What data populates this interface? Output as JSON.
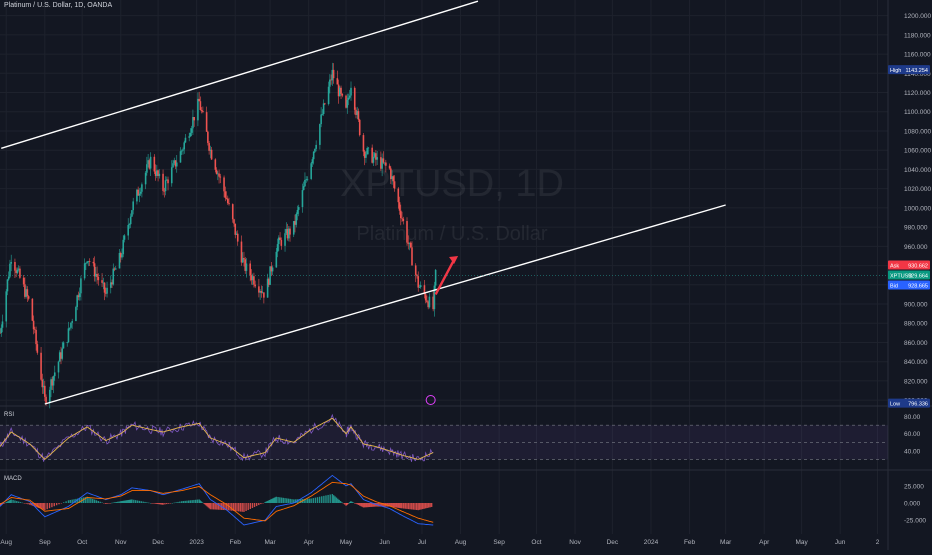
{
  "header": {
    "symbol_title": "Platinum / U.S. Dollar, 1D, OANDA"
  },
  "watermark": {
    "ticker": "XPTUSD, 1D",
    "name": "Platinum / U.S. Dollar"
  },
  "colors": {
    "background": "#131722",
    "grid": "#1e222d",
    "up_candle": "#26a69a",
    "down_candle": "#ef5350",
    "trendline": "#ffffff",
    "arrow": "#f23645",
    "rsi_line": "#7e57c2",
    "rsi_ma": "#e6b84d",
    "macd_line": "#2962ff",
    "signal_line": "#ff6d00"
  },
  "price_axis": {
    "ticks": [
      "1200.000",
      "1180.000",
      "1160.000",
      "1140.000",
      "1120.000",
      "1100.000",
      "1080.000",
      "1060.000",
      "1040.000",
      "1020.000",
      "1000.000",
      "980.000",
      "960.000",
      "940.000",
      "920.000",
      "900.000",
      "880.000",
      "860.000",
      "840.000",
      "820.000",
      "800.000"
    ],
    "high": {
      "label": "High",
      "value": "1143.254"
    },
    "low": {
      "label": "Low",
      "value": "796.336"
    },
    "ask": {
      "label": "Ask",
      "value": "930.662"
    },
    "last": {
      "label": "XPTUSD",
      "value": "929.664"
    },
    "bid": {
      "label": "Bid",
      "value": "928.665"
    }
  },
  "time_axis": {
    "labels": [
      "Aug",
      "Sep",
      "Oct",
      "Nov",
      "Dec",
      "2023",
      "Feb",
      "Mar",
      "Apr",
      "May",
      "Jun",
      "Jul",
      "Aug",
      "Sep",
      "Oct",
      "Nov",
      "Dec",
      "2024",
      "Feb",
      "Mar",
      "Apr",
      "May",
      "Jun",
      "2"
    ]
  },
  "rsi": {
    "label": "RSI",
    "ticks": [
      "80.00",
      "60.00",
      "40.00"
    ]
  },
  "macd": {
    "label": "MACD",
    "ticks": [
      "25.000",
      "0.000",
      "-25.000"
    ]
  },
  "chart_data": {
    "type": "candlestick",
    "title": "Platinum / U.S. Dollar, 1D, OANDA",
    "symbol": "XPTUSD",
    "ylim": [
      796,
      1210
    ],
    "trend_channel": {
      "upper": {
        "start": {
          "date": "2022-07-28",
          "price": 1062
        },
        "end": {
          "date": "2023-08-15",
          "price": 1215
        }
      },
      "lower": {
        "start": {
          "date": "2022-09-01",
          "price": 796
        },
        "end": {
          "date": "2024-03-01",
          "price": 1003
        }
      }
    },
    "price_path": {
      "dates": [
        "2022-07-27",
        "2022-08-05",
        "2022-08-20",
        "2022-09-01",
        "2022-09-20",
        "2022-10-05",
        "2022-10-20",
        "2022-11-01",
        "2022-11-10",
        "2022-11-25",
        "2022-12-05",
        "2022-12-20",
        "2023-01-03",
        "2023-01-12",
        "2023-01-25",
        "2023-02-08",
        "2023-02-25",
        "2023-03-06",
        "2023-03-20",
        "2023-04-03",
        "2023-04-20",
        "2023-05-01",
        "2023-05-05",
        "2023-05-15",
        "2023-05-25",
        "2023-06-05",
        "2023-06-15",
        "2023-06-28",
        "2023-07-10",
        "2023-07-12"
      ],
      "close": [
        870,
        950,
        900,
        800,
        870,
        950,
        910,
        950,
        1000,
        1050,
        1020,
        1060,
        1110,
        1060,
        1010,
        940,
        910,
        960,
        980,
        1050,
        1140,
        1100,
        1130,
        1060,
        1050,
        1040,
        990,
        920,
        895,
        929.664
      ]
    },
    "rsi_path": [
      45,
      62,
      48,
      30,
      55,
      68,
      52,
      60,
      70,
      65,
      62,
      68,
      72,
      55,
      48,
      32,
      38,
      55,
      50,
      65,
      78,
      60,
      68,
      48,
      45,
      40,
      35,
      30,
      38
    ],
    "macd_line_path": [
      -5,
      12,
      2,
      -20,
      -5,
      15,
      5,
      12,
      22,
      18,
      12,
      20,
      28,
      5,
      -10,
      -32,
      -25,
      -5,
      0,
      15,
      40,
      25,
      28,
      5,
      -2,
      -8,
      -18,
      -30,
      -32
    ],
    "signal_path": [
      -2,
      8,
      4,
      -12,
      -8,
      8,
      6,
      10,
      18,
      18,
      14,
      18,
      24,
      12,
      -2,
      -22,
      -26,
      -12,
      -4,
      10,
      30,
      28,
      26,
      10,
      2,
      -4,
      -12,
      -22,
      -28
    ],
    "arrow": {
      "from": {
        "date": "2023-07-12",
        "price": 910
      },
      "to": {
        "date": "2023-07-30",
        "price": 950
      }
    }
  }
}
